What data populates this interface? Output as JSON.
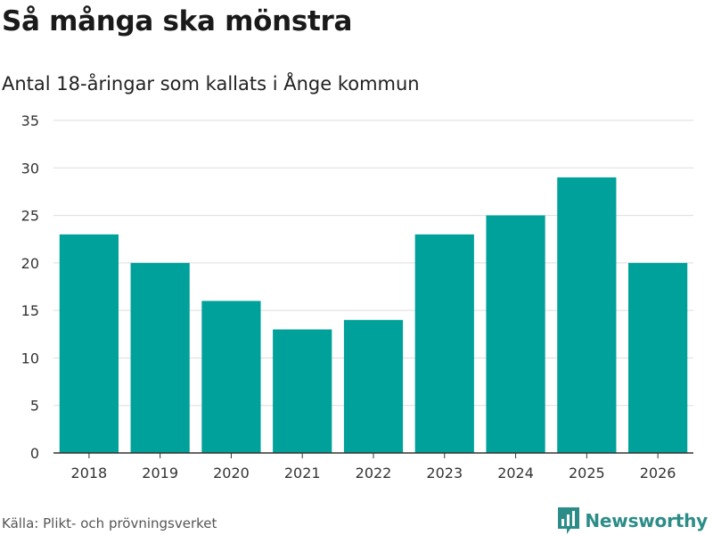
{
  "header": {
    "title": "Så många ska mönstra",
    "subtitle": "Antal 18-åringar som kallats i Ånge kommun"
  },
  "footer": {
    "source": "Källa: Plikt- och prövningsverket",
    "brand": "Newsworthy",
    "brand_icon": "bar-chart-logo-icon"
  },
  "colors": {
    "bar": "#00a19a",
    "grid": "#dddddd",
    "axis": "#333333",
    "brand": "#2c8c87"
  },
  "chart_data": {
    "type": "bar",
    "title": "Så många ska mönstra",
    "subtitle": "Antal 18-åringar som kallats i Ånge kommun",
    "xlabel": "",
    "ylabel": "",
    "categories": [
      "2018",
      "2019",
      "2020",
      "2021",
      "2022",
      "2023",
      "2024",
      "2025",
      "2026"
    ],
    "values": [
      23,
      20,
      16,
      13,
      14,
      23,
      25,
      29,
      20
    ],
    "ylim": [
      0,
      35
    ],
    "yticks": [
      0,
      5,
      10,
      15,
      20,
      25,
      30,
      35
    ],
    "grid": true,
    "legend": "none"
  }
}
